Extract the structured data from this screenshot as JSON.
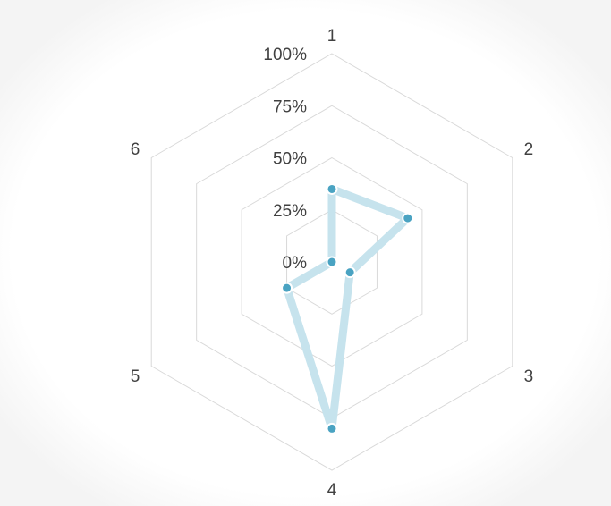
{
  "chart_data": {
    "type": "radar",
    "title": "",
    "categories": [
      "1",
      "2",
      "3",
      "4",
      "5",
      "6"
    ],
    "series": [
      {
        "values": [
          0.35,
          0.42,
          0.1,
          0.8,
          0.25,
          0.0
        ]
      }
    ],
    "r_ticks": [
      "0%",
      "25%",
      "50%",
      "75%",
      "100%"
    ],
    "r_range": [
      0,
      1
    ],
    "grid": true,
    "legend": "none",
    "colors": {
      "series_line": "#c6e3ed",
      "series_marker": "#4aa3c2",
      "marker_stroke": "#ffffff",
      "grid": "#d9d9d9",
      "text": "#404040"
    }
  }
}
